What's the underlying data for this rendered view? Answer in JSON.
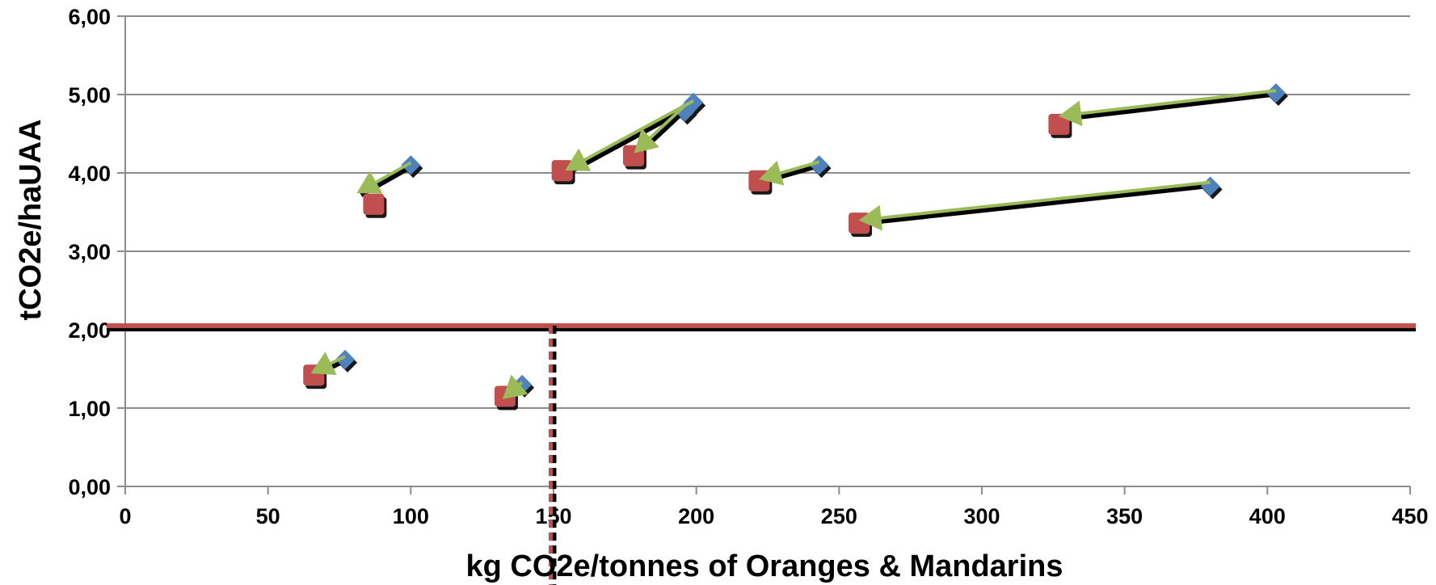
{
  "chart_data": {
    "type": "scatter",
    "title": "",
    "xlabel": "kg CO2e/tonnes of Oranges & Mandarins",
    "ylabel": "tCO2e/haUAA",
    "xlim": [
      0,
      450
    ],
    "ylim": [
      0,
      6
    ],
    "x_ticks": [
      0,
      50,
      100,
      150,
      200,
      250,
      300,
      350,
      400,
      450
    ],
    "x_tick_labels": [
      "0",
      "50",
      "100",
      "150",
      "200",
      "250",
      "300",
      "350",
      "400",
      "450"
    ],
    "y_ticks": [
      0,
      1,
      2,
      3,
      4,
      5,
      6
    ],
    "y_tick_labels": [
      "0,00",
      "1,00",
      "2,00",
      "3,00",
      "4,00",
      "5,00",
      "6,00"
    ],
    "grid": "horizontal",
    "reference_lines": {
      "horizontal_y": 2.05,
      "vertical_x": 149
    },
    "series": [
      {
        "marker": "diamond",
        "color": "#4f81bd",
        "points": [
          [
            100,
            4.1
          ],
          [
            199,
            4.9
          ],
          [
            196,
            4.78
          ],
          [
            243,
            4.1
          ],
          [
            403,
            5.02
          ],
          [
            380,
            3.83
          ],
          [
            77,
            1.62
          ],
          [
            139,
            1.3
          ]
        ]
      },
      {
        "marker": "square",
        "color": "#c0504d",
        "points": [
          [
            87,
            3.6
          ],
          [
            153,
            4.03
          ],
          [
            178,
            4.22
          ],
          [
            222,
            3.9
          ],
          [
            327,
            4.62
          ],
          [
            257,
            3.36
          ],
          [
            66,
            1.42
          ],
          [
            133,
            1.15
          ]
        ]
      }
    ],
    "arrows": [
      {
        "from": [
          100,
          4.13
        ],
        "to": [
          82,
          3.76
        ]
      },
      {
        "from": [
          199,
          4.92
        ],
        "to": [
          155,
          4.05
        ]
      },
      {
        "from": [
          196,
          4.86
        ],
        "to": [
          179,
          4.28
        ]
      },
      {
        "from": [
          243,
          4.14
        ],
        "to": [
          223,
          3.93
        ]
      },
      {
        "from": [
          403,
          5.05
        ],
        "to": [
          328,
          4.73
        ]
      },
      {
        "from": [
          380,
          3.88
        ],
        "to": [
          258,
          3.4
        ]
      },
      {
        "from": [
          77,
          1.66
        ],
        "to": [
          66,
          1.46
        ]
      },
      {
        "from": [
          139,
          1.33
        ],
        "to": [
          133,
          1.14
        ]
      }
    ],
    "colors": {
      "arrow": "#9bbb59",
      "reference": "#c0504d",
      "grid": "#8c8c8c"
    }
  }
}
